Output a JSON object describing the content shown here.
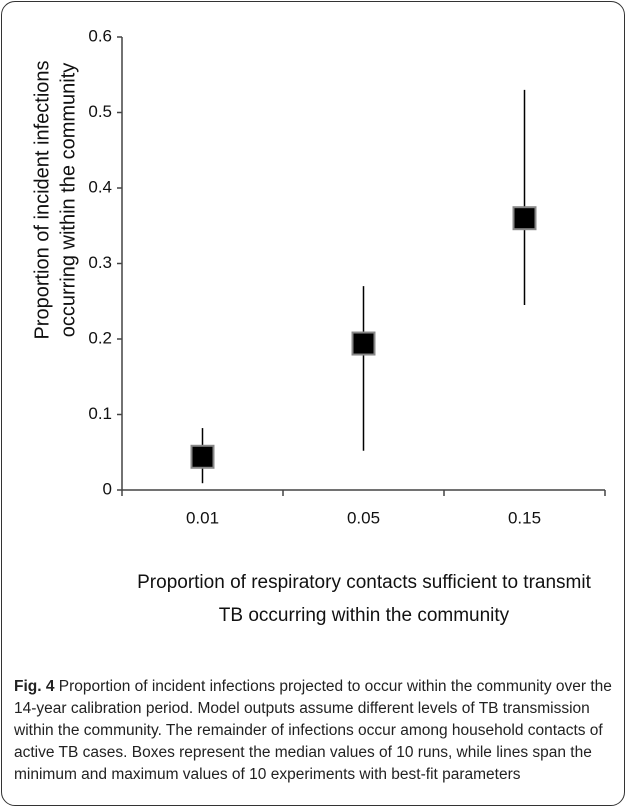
{
  "chart_data": {
    "type": "errorbar",
    "x_label_lines": [
      "Proportion of respiratory contacts sufficient to transmit",
      "TB occurring within the community"
    ],
    "y_label_lines": [
      "Proportion of incident infections",
      "occurring within the community"
    ],
    "categories": [
      "0.01",
      "0.05",
      "0.15"
    ],
    "medians": [
      0.044,
      0.194,
      0.36
    ],
    "mins": [
      0.009,
      0.052,
      0.245
    ],
    "maxs": [
      0.082,
      0.27,
      0.53
    ],
    "color": "#000000",
    "ylim": [
      0,
      0.6
    ],
    "yticks": [
      0,
      0.1,
      0.2,
      0.3,
      0.4,
      0.5,
      0.6
    ],
    "grid": false
  },
  "caption": {
    "label": "Fig. 4",
    "text": "Proportion of incident infections projected to occur within the community over the 14-year calibration period. Model outputs assume different levels of TB transmission within the community. The remainder of infections occur among household contacts of active TB cases. Boxes represent the median values of 10 runs, while lines span the minimum and maximum values of 10 experiments with best-fit parameters"
  }
}
